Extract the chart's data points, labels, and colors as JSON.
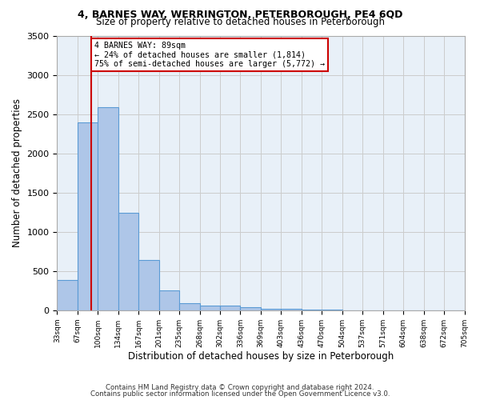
{
  "title1": "4, BARNES WAY, WERRINGTON, PETERBOROUGH, PE4 6QD",
  "title2": "Size of property relative to detached houses in Peterborough",
  "xlabel": "Distribution of detached houses by size in Peterborough",
  "ylabel": "Number of detached properties",
  "footer1": "Contains HM Land Registry data © Crown copyright and database right 2024.",
  "footer2": "Contains public sector information licensed under the Open Government Licence v3.0.",
  "annotation_title": "4 BARNES WAY: 89sqm",
  "annotation_line1": "← 24% of detached houses are smaller (1,814)",
  "annotation_line2": "75% of semi-detached houses are larger (5,772) →",
  "bar_values": [
    390,
    2400,
    2590,
    1240,
    640,
    255,
    90,
    55,
    55,
    40,
    20,
    15,
    10,
    5,
    3,
    2,
    1,
    1,
    1,
    1
  ],
  "categories": [
    "33sqm",
    "67sqm",
    "100sqm",
    "134sqm",
    "167sqm",
    "201sqm",
    "235sqm",
    "268sqm",
    "302sqm",
    "336sqm",
    "369sqm",
    "403sqm",
    "436sqm",
    "470sqm",
    "504sqm",
    "537sqm",
    "571sqm",
    "604sqm",
    "638sqm",
    "672sqm",
    "705sqm"
  ],
  "bar_color": "#aec6e8",
  "bar_edge_color": "#5b9bd5",
  "vline_color": "#cc0000",
  "annotation_box_color": "#cc0000",
  "grid_color": "#cccccc",
  "background_color": "#e8f0f8",
  "ylim": [
    0,
    3500
  ],
  "yticks": [
    0,
    500,
    1000,
    1500,
    2000,
    2500,
    3000,
    3500
  ]
}
